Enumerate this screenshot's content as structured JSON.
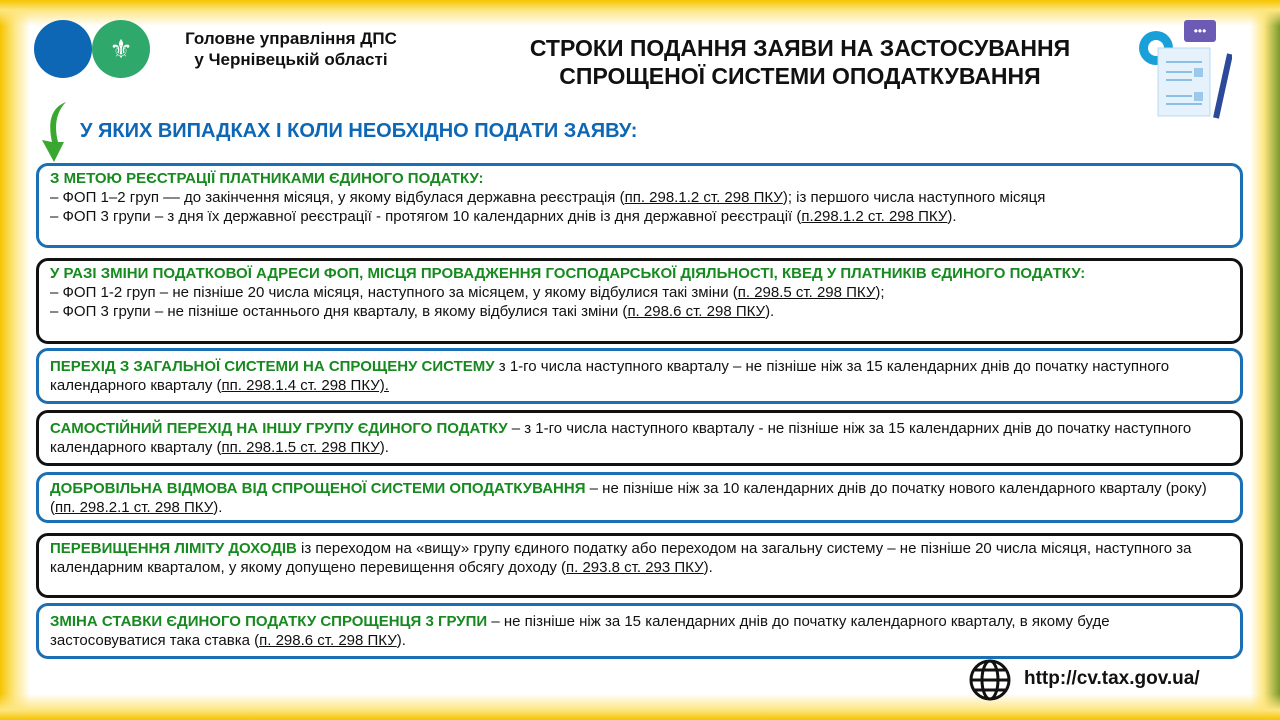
{
  "header": {
    "org_line1": "Головне управління ДПС",
    "org_line2": "у Чернівецькій області",
    "title_line1": "СТРОКИ ПОДАННЯ ЗАЯВИ НА ЗАСТОСУВАННЯ",
    "title_line2": "СПРОЩЕНОЇ СИСТЕМИ ОПОДАТКУВАННЯ",
    "logo_icon": "trident-emblem"
  },
  "subtitle": "У ЯКИХ ВИПАДКАХ І КОЛИ НЕОБХІДНО ПОДАТИ ЗАЯВУ:",
  "colors": {
    "blue": "#0d67b5",
    "green": "#168a1f",
    "yellow": "#f5c400"
  },
  "boxes": [
    {
      "lines": [
        [
          {
            "t": "З МЕТОЮ РЕЄСТРАЦІЇ ПЛАТНИКАМИ ЄДИНОГО ПОДАТКУ:",
            "k": "h"
          }
        ],
        [
          {
            "t": "– ФОП 1–2 груп –– до закінчення місяця, у якому відбулася державна реєстрація ("
          },
          {
            "t": "пп. 298.1.2 ст. 298 ПКУ",
            "k": "lnk"
          },
          {
            "t": "); із першого числа наступного місяця"
          }
        ],
        [
          {
            "t": "– ФОП 3 групи – з дня їх державної реєстрації - протягом 10 календарних днів із дня державної реєстрації ("
          },
          {
            "t": "п.298.1.2 ст. 298 ПКУ",
            "k": "lnk"
          },
          {
            "t": ")."
          }
        ]
      ]
    },
    {
      "lines": [
        [
          {
            "t": "У РАЗІ ЗМІНИ ПОДАТКОВОЇ АДРЕСИ ФОП, МІСЦЯ ПРОВАДЖЕННЯ ГОСПОДАРСЬКОЇ ДІЯЛЬНОСТІ, КВЕД У ПЛАТНИКІВ ЄДИНОГО ПОДАТКУ:",
            "k": "h"
          }
        ],
        [
          {
            "t": "– ФОП 1-2 груп – не пізніше 20 числа місяця, наступного за місяцем, у якому відбулися такі зміни ("
          },
          {
            "t": "п. 298.5 ст. 298 ПКУ",
            "k": "lnk"
          },
          {
            "t": ");"
          }
        ],
        [
          {
            "t": "– ФОП 3 групи – не пізніше останнього дня кварталу, в якому відбулися такі зміни ("
          },
          {
            "t": "п. 298.6 ст. 298 ПКУ",
            "k": "lnk"
          },
          {
            "t": ")."
          }
        ]
      ]
    },
    {
      "lines": [
        [
          {
            "t": "ПЕРЕХІД З ЗАГАЛЬНОЇ СИСТЕМИ НА СПРОЩЕНУ СИСТЕМУ",
            "k": "h"
          },
          {
            "t": " з 1-го числа наступного кварталу – не пізніше ніж за 15 календарних днів до початку наступного календарного кварталу ("
          },
          {
            "t": "пп. 298.1.4 ст. 298 ПКУ).",
            "k": "lnk"
          }
        ]
      ]
    },
    {
      "lines": [
        [
          {
            "t": "САМОСТІЙНИЙ ПЕРЕХІД НА ІНШУ ГРУПУ ЄДИНОГО ПОДАТКУ",
            "k": "h"
          },
          {
            "t": " – з 1-го числа наступного кварталу - не пізніше ніж за 15 календарних днів до початку наступного календарного кварталу ("
          },
          {
            "t": "пп. 298.1.5 ст. 298 ПКУ",
            "k": "lnk"
          },
          {
            "t": ")."
          }
        ]
      ]
    },
    {
      "lines": [
        [
          {
            "t": "ДОБРОВІЛЬНА ВІДМОВА ВІД СПРОЩЕНОЇ СИСТЕМИ ОПОДАТКУВАННЯ",
            "k": "h"
          },
          {
            "t": " – не пізніше ніж за 10 календарних днів до початку нового календарного кварталу (року) ("
          },
          {
            "t": "пп. 298.2.1 ст. 298 ПКУ",
            "k": "lnk"
          },
          {
            "t": ")."
          }
        ]
      ]
    },
    {
      "lines": [
        [
          {
            "t": "ПЕРЕВИЩЕННЯ ЛІМІТУ ДОХОДІВ",
            "k": "h"
          },
          {
            "t": " із переходом на «вищу» групу єдиного податку або переходом на загальну систему – не пізніше 20 числа місяця, наступного за календарним кварталом, у якому допущено перевищення обсягу доходу ("
          },
          {
            "t": "п. 293.8 ст. 293 ПКУ",
            "k": "lnk"
          },
          {
            "t": ")."
          }
        ]
      ]
    },
    {
      "lines": [
        [
          {
            "t": "ЗМІНА СТАВКИ ЄДИНОГО ПОДАТКУ СПРОЩЕНЦЯ 3 ГРУПИ",
            "k": "h"
          },
          {
            "t": " – не пізніше ніж за 15 календарних днів до початку календарного кварталу, в якому буде застосовуватися така ставка ("
          },
          {
            "t": "п. 298.6 ст. 298 ПКУ",
            "k": "lnk"
          },
          {
            "t": ")."
          }
        ]
      ]
    }
  ],
  "footer": {
    "url": "http://cv.tax.gov.ua/",
    "globe_icon": "globe-icon"
  }
}
